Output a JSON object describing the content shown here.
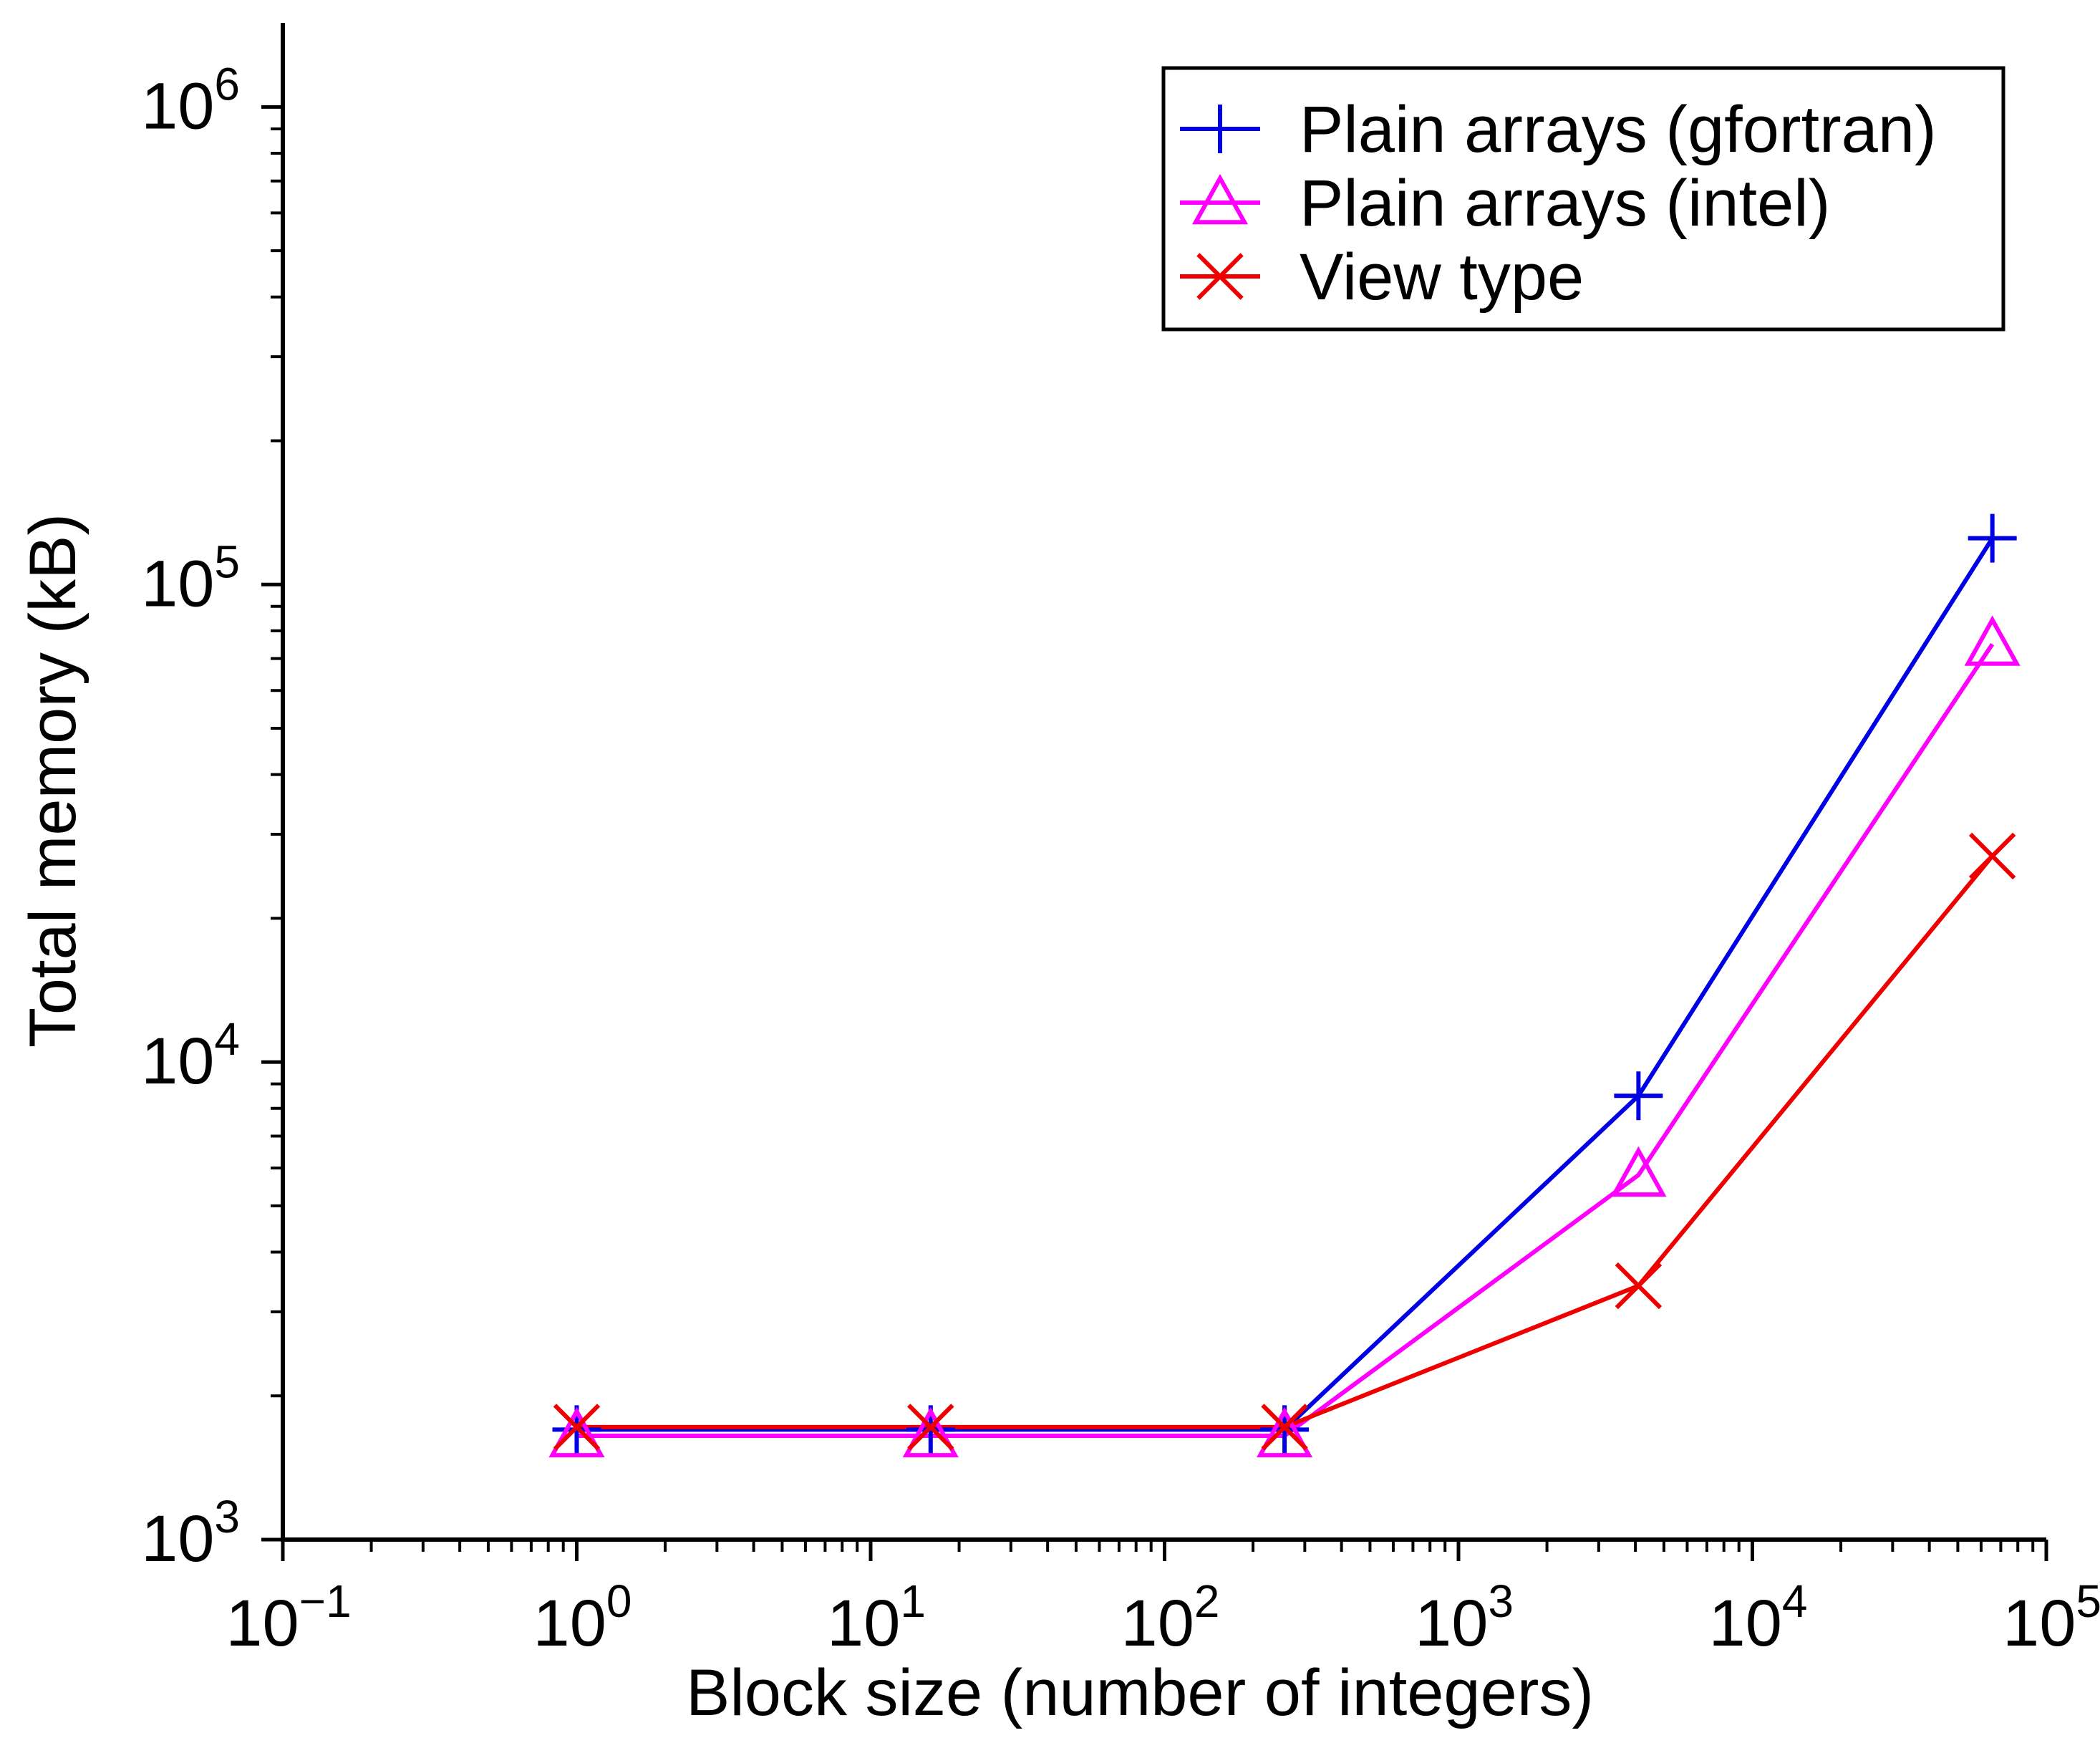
{
  "chart_data": {
    "type": "line",
    "title": "",
    "xlabel": "Block size (number of integers)",
    "ylabel": "Total memory (kB)",
    "xscale": "log",
    "yscale": "log",
    "xlim": [
      0.1,
      100000
    ],
    "ylim": [
      1000,
      1500000
    ],
    "grid": false,
    "legend_position": "top-right",
    "x_ticks": [
      {
        "base": "10",
        "exp": "−1",
        "value": 0.1
      },
      {
        "base": "10",
        "exp": "0",
        "value": 1
      },
      {
        "base": "10",
        "exp": "1",
        "value": 10
      },
      {
        "base": "10",
        "exp": "2",
        "value": 100
      },
      {
        "base": "10",
        "exp": "3",
        "value": 1000
      },
      {
        "base": "10",
        "exp": "4",
        "value": 10000
      },
      {
        "base": "10",
        "exp": "5",
        "value": 100000
      }
    ],
    "y_ticks": [
      {
        "base": "10",
        "exp": "3",
        "value": 1000
      },
      {
        "base": "10",
        "exp": "4",
        "value": 10000
      },
      {
        "base": "10",
        "exp": "5",
        "value": 100000
      },
      {
        "base": "10",
        "exp": "6",
        "value": 1000000
      }
    ],
    "x": [
      1,
      16,
      256,
      4096,
      65536
    ],
    "series": [
      {
        "name": "Plain arrays (gfortran)",
        "marker": "plus",
        "color": "#0000e6",
        "values": [
          1700,
          1700,
          1700,
          8500,
          125000
        ]
      },
      {
        "name": "Plain arrays (intel)",
        "marker": "triangle",
        "color": "#ff00ff",
        "values": [
          1650,
          1650,
          1650,
          5800,
          75000
        ]
      },
      {
        "name": "View type",
        "marker": "x",
        "color": "#ee0000",
        "values": [
          1720,
          1720,
          1720,
          3400,
          27000
        ]
      }
    ]
  }
}
